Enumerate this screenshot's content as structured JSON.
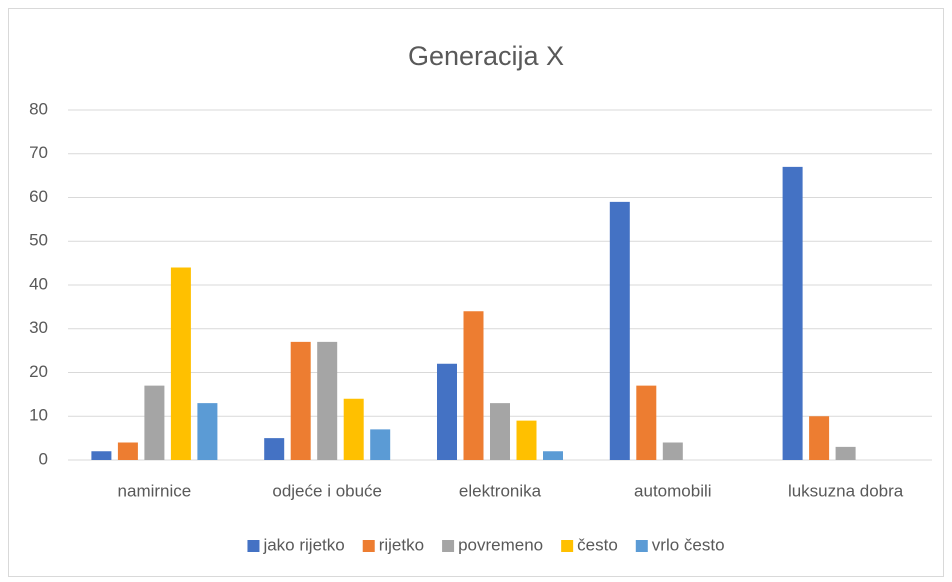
{
  "chart_data": {
    "type": "bar",
    "title": "Generacija X",
    "categories": [
      "namirnice",
      "odjeće i obuće",
      "elektronika",
      "automobili",
      "luksuzna dobra"
    ],
    "series": [
      {
        "name": "jako rijetko",
        "color": "#4472c4",
        "values": [
          2,
          5,
          22,
          59,
          67
        ]
      },
      {
        "name": "rijetko",
        "color": "#ed7d31",
        "values": [
          4,
          27,
          34,
          17,
          10
        ]
      },
      {
        "name": "povremeno",
        "color": "#a5a5a5",
        "values": [
          17,
          27,
          13,
          4,
          3
        ]
      },
      {
        "name": "često",
        "color": "#ffc000",
        "values": [
          44,
          14,
          9,
          0,
          0
        ]
      },
      {
        "name": "vrlo često",
        "color": "#5b9bd5",
        "values": [
          13,
          7,
          2,
          0,
          0
        ]
      }
    ],
    "ylim": [
      0,
      80
    ],
    "yticks": [
      0,
      10,
      20,
      30,
      40,
      50,
      60,
      70,
      80
    ],
    "grid": true,
    "legend": "bottom"
  }
}
